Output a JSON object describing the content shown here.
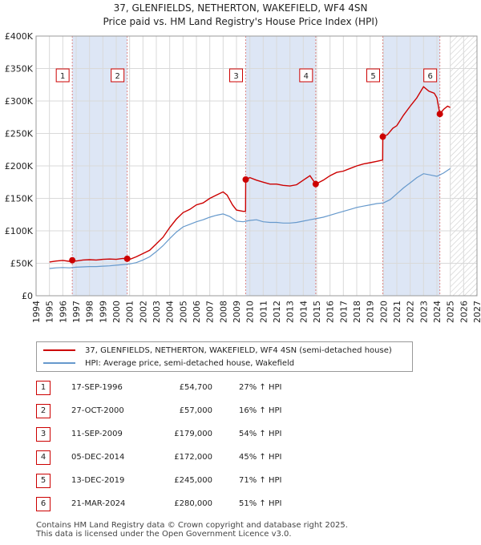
{
  "header": {
    "line1": "37, GLENFIELDS, NETHERTON, WAKEFIELD, WF4 4SN",
    "line2": "Price paid vs. HM Land Registry's House Price Index (HPI)"
  },
  "colors": {
    "price_line": "#cc0000",
    "hpi_line": "#6699cc",
    "shade": "#dde6f5",
    "grid": "#d9d9d9",
    "marker_dash": "#dd8888"
  },
  "chart_data": {
    "type": "line",
    "title": "37, GLENFIELDS, NETHERTON, WAKEFIELD, WF4 4SN",
    "subtitle": "Price paid vs. HM Land Registry's House Price Index (HPI)",
    "xlim": [
      1994,
      2027
    ],
    "ylim": [
      0,
      400000
    ],
    "x_ticks": [
      1994,
      1995,
      1996,
      1997,
      1998,
      1999,
      2000,
      2001,
      2002,
      2003,
      2004,
      2005,
      2006,
      2007,
      2008,
      2009,
      2010,
      2011,
      2012,
      2013,
      2014,
      2015,
      2016,
      2017,
      2018,
      2019,
      2020,
      2021,
      2022,
      2023,
      2024,
      2025,
      2026,
      2027
    ],
    "y_ticks": [
      {
        "value": 0,
        "label": "£0"
      },
      {
        "value": 50000,
        "label": "£50K"
      },
      {
        "value": 100000,
        "label": "£100K"
      },
      {
        "value": 150000,
        "label": "£150K"
      },
      {
        "value": 200000,
        "label": "£200K"
      },
      {
        "value": 250000,
        "label": "£250K"
      },
      {
        "value": 300000,
        "label": "£300K"
      },
      {
        "value": 350000,
        "label": "£350K"
      },
      {
        "value": 400000,
        "label": "£400K"
      }
    ],
    "shaded_ranges": [
      [
        1996.71,
        2000.82
      ],
      [
        2009.69,
        2014.93
      ],
      [
        2019.95,
        2024.22
      ]
    ],
    "future_hatch_from": 2025.0,
    "series": [
      {
        "name": "37, GLENFIELDS, NETHERTON, WAKEFIELD, WF4 4SN (semi-detached house)",
        "color": "#cc0000",
        "points": [
          [
            1995.0,
            52000
          ],
          [
            1995.5,
            53500
          ],
          [
            1996.0,
            54500
          ],
          [
            1996.5,
            53000
          ],
          [
            1996.71,
            54700
          ],
          [
            1997.0,
            53500
          ],
          [
            1997.5,
            55000
          ],
          [
            1998.0,
            55500
          ],
          [
            1998.5,
            55000
          ],
          [
            1999.0,
            56000
          ],
          [
            1999.5,
            56500
          ],
          [
            2000.0,
            56000
          ],
          [
            2000.5,
            57500
          ],
          [
            2000.82,
            57000
          ],
          [
            2001.0,
            56000
          ],
          [
            2001.5,
            60000
          ],
          [
            2002.0,
            65000
          ],
          [
            2002.5,
            70000
          ],
          [
            2003.0,
            80000
          ],
          [
            2003.5,
            90000
          ],
          [
            2004.0,
            105000
          ],
          [
            2004.5,
            118000
          ],
          [
            2005.0,
            128000
          ],
          [
            2005.5,
            133000
          ],
          [
            2006.0,
            140000
          ],
          [
            2006.5,
            143000
          ],
          [
            2007.0,
            150000
          ],
          [
            2007.5,
            155000
          ],
          [
            2008.0,
            160000
          ],
          [
            2008.3,
            155000
          ],
          [
            2008.7,
            140000
          ],
          [
            2009.0,
            132000
          ],
          [
            2009.5,
            130000
          ],
          [
            2009.68,
            130000
          ],
          [
            2009.69,
            179000
          ],
          [
            2010.0,
            182000
          ],
          [
            2010.5,
            178000
          ],
          [
            2011.0,
            175000
          ],
          [
            2011.5,
            172000
          ],
          [
            2012.0,
            172000
          ],
          [
            2012.5,
            170000
          ],
          [
            2013.0,
            169000
          ],
          [
            2013.5,
            171000
          ],
          [
            2014.0,
            178000
          ],
          [
            2014.5,
            185000
          ],
          [
            2014.93,
            172000
          ],
          [
            2015.5,
            178000
          ],
          [
            2016.0,
            185000
          ],
          [
            2016.5,
            190000
          ],
          [
            2017.0,
            192000
          ],
          [
            2017.5,
            196000
          ],
          [
            2018.0,
            200000
          ],
          [
            2018.5,
            203000
          ],
          [
            2019.0,
            205000
          ],
          [
            2019.5,
            207000
          ],
          [
            2019.94,
            209000
          ],
          [
            2019.95,
            245000
          ],
          [
            2020.3,
            248000
          ],
          [
            2020.7,
            258000
          ],
          [
            2021.0,
            262000
          ],
          [
            2021.5,
            278000
          ],
          [
            2022.0,
            292000
          ],
          [
            2022.5,
            305000
          ],
          [
            2023.0,
            322000
          ],
          [
            2023.4,
            315000
          ],
          [
            2023.8,
            312000
          ],
          [
            2024.0,
            305000
          ],
          [
            2024.22,
            280000
          ],
          [
            2024.5,
            287000
          ],
          [
            2024.8,
            292000
          ],
          [
            2025.0,
            290000
          ]
        ]
      },
      {
        "name": "HPI: Average price, semi-detached house, Wakefield",
        "color": "#6699cc",
        "points": [
          [
            1995.0,
            42000
          ],
          [
            1995.5,
            43000
          ],
          [
            1996.0,
            43500
          ],
          [
            1996.5,
            43000
          ],
          [
            1997.0,
            44000
          ],
          [
            1997.5,
            44500
          ],
          [
            1998.0,
            45000
          ],
          [
            1998.5,
            45000
          ],
          [
            1999.0,
            45500
          ],
          [
            1999.5,
            46000
          ],
          [
            2000.0,
            47000
          ],
          [
            2000.5,
            48000
          ],
          [
            2001.0,
            49000
          ],
          [
            2001.5,
            51000
          ],
          [
            2002.0,
            55000
          ],
          [
            2002.5,
            60000
          ],
          [
            2003.0,
            68000
          ],
          [
            2003.5,
            77000
          ],
          [
            2004.0,
            88000
          ],
          [
            2004.5,
            98000
          ],
          [
            2005.0,
            106000
          ],
          [
            2005.5,
            110000
          ],
          [
            2006.0,
            114000
          ],
          [
            2006.5,
            117000
          ],
          [
            2007.0,
            121000
          ],
          [
            2007.5,
            124000
          ],
          [
            2008.0,
            126000
          ],
          [
            2008.5,
            122000
          ],
          [
            2009.0,
            115000
          ],
          [
            2009.5,
            114000
          ],
          [
            2010.0,
            116000
          ],
          [
            2010.5,
            117000
          ],
          [
            2011.0,
            114000
          ],
          [
            2011.5,
            113000
          ],
          [
            2012.0,
            113000
          ],
          [
            2012.5,
            112000
          ],
          [
            2013.0,
            112000
          ],
          [
            2013.5,
            113000
          ],
          [
            2014.0,
            115000
          ],
          [
            2014.5,
            117000
          ],
          [
            2015.0,
            119000
          ],
          [
            2015.5,
            121000
          ],
          [
            2016.0,
            124000
          ],
          [
            2016.5,
            127000
          ],
          [
            2017.0,
            130000
          ],
          [
            2017.5,
            133000
          ],
          [
            2018.0,
            136000
          ],
          [
            2018.5,
            138000
          ],
          [
            2019.0,
            140000
          ],
          [
            2019.5,
            142000
          ],
          [
            2020.0,
            143000
          ],
          [
            2020.5,
            148000
          ],
          [
            2021.0,
            157000
          ],
          [
            2021.5,
            166000
          ],
          [
            2022.0,
            174000
          ],
          [
            2022.5,
            182000
          ],
          [
            2023.0,
            188000
          ],
          [
            2023.5,
            186000
          ],
          [
            2024.0,
            184000
          ],
          [
            2024.5,
            189000
          ],
          [
            2025.0,
            196000
          ]
        ]
      }
    ],
    "sales": [
      {
        "label": "1",
        "date": "17-SEP-1996",
        "x": 1996.71,
        "price": 54700,
        "price_label": "£54,700",
        "hpi_diff": "27% ↑ HPI"
      },
      {
        "label": "2",
        "date": "27-OCT-2000",
        "x": 2000.82,
        "price": 57000,
        "price_label": "£57,000",
        "hpi_diff": "16% ↑ HPI"
      },
      {
        "label": "3",
        "date": "11-SEP-2009",
        "x": 2009.69,
        "price": 179000,
        "price_label": "£179,000",
        "hpi_diff": "54% ↑ HPI"
      },
      {
        "label": "4",
        "date": "05-DEC-2014",
        "x": 2014.93,
        "price": 172000,
        "price_label": "£172,000",
        "hpi_diff": "45% ↑ HPI"
      },
      {
        "label": "5",
        "date": "13-DEC-2019",
        "x": 2019.95,
        "price": 245000,
        "price_label": "£245,000",
        "hpi_diff": "71% ↑ HPI"
      },
      {
        "label": "6",
        "date": "21-MAR-2024",
        "x": 2024.22,
        "price": 280000,
        "price_label": "£280,000",
        "hpi_diff": "51% ↑ HPI"
      }
    ]
  },
  "legend": {
    "price_label": "37, GLENFIELDS, NETHERTON, WAKEFIELD, WF4 4SN (semi-detached house)",
    "hpi_label": "HPI: Average price, semi-detached house, Wakefield"
  },
  "footer": {
    "line1": "Contains HM Land Registry data © Crown copyright and database right 2025.",
    "line2": "This data is licensed under the Open Government Licence v3.0."
  }
}
